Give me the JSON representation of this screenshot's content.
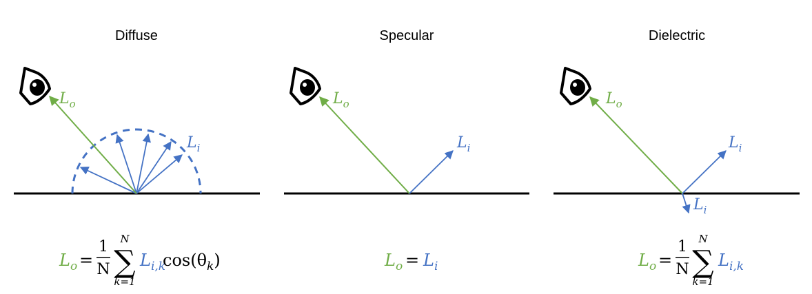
{
  "colors": {
    "outgoing": "#70ad47",
    "incoming": "#4472c4",
    "surface": "#000000"
  },
  "icons": {
    "eye": "eye-icon"
  },
  "panels": [
    {
      "title": "Diffuse",
      "lo_label": {
        "base": "L",
        "sub": "o"
      },
      "li_label": {
        "base": "L",
        "sub": "i"
      },
      "equation": {
        "lhs_base": "L",
        "lhs_sub": "o",
        "equals": "=",
        "frac_num": "1",
        "frac_den": "N",
        "sum_symbol": "∑",
        "sum_upper": "N",
        "sum_lower": "k=1",
        "term_base": "L",
        "term_sub": "i,k",
        "cos_text": "cos(θ",
        "cos_sub": "k",
        "cos_close": ")"
      }
    },
    {
      "title": "Specular",
      "lo_label": {
        "base": "L",
        "sub": "o"
      },
      "li_label": {
        "base": "L",
        "sub": "i"
      },
      "equation": {
        "lhs_base": "L",
        "lhs_sub": "o",
        "equals": "=",
        "rhs_base": "L",
        "rhs_sub": "i"
      }
    },
    {
      "title": "Dielectric",
      "lo_label": {
        "base": "L",
        "sub": "o"
      },
      "li_label": {
        "base": "L",
        "sub": "i"
      },
      "li_trans_label": {
        "base": "L",
        "sub": "i"
      },
      "equation": {
        "lhs_base": "L",
        "lhs_sub": "o",
        "equals": "=",
        "frac_num": "1",
        "frac_den": "N",
        "sum_symbol": "∑",
        "sum_upper": "N",
        "sum_lower": "k=1",
        "term_base": "L",
        "term_sub": "i,k"
      }
    }
  ]
}
